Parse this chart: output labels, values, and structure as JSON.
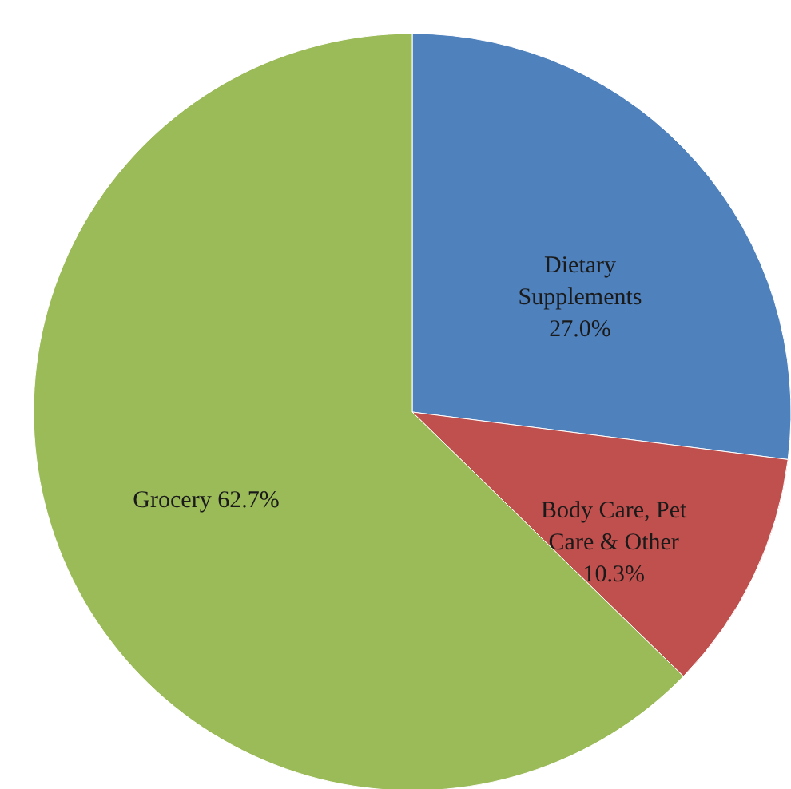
{
  "chart_data": {
    "type": "pie",
    "categories": [
      "Dietary Supplements",
      "Body Care, Pet Care & Other",
      "Grocery"
    ],
    "values": [
      27.0,
      10.3,
      62.7
    ],
    "colors": [
      "#4f81bd",
      "#c0504d",
      "#9bbb59"
    ],
    "value_labels": [
      "27.0%",
      "10.3%",
      "62.7%"
    ]
  }
}
